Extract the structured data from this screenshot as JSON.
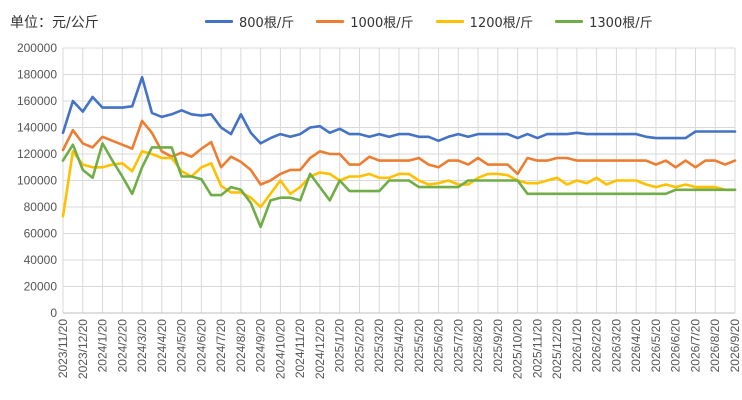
{
  "chart_data": {
    "type": "line",
    "unit_label": "单位：元/公斤",
    "ylim": [
      0,
      200000
    ],
    "y_ticks": [
      "0",
      "20000",
      "40000",
      "60000",
      "80000",
      "100000",
      "120000",
      "140000",
      "160000",
      "180000",
      "200000"
    ],
    "x": [
      "2023/11/20",
      "2023/12/5",
      "2023/12/20",
      "2024/1/5",
      "2024/1/20",
      "2024/2/5",
      "2024/2/20",
      "2024/3/5",
      "2024/3/20",
      "2024/4/5",
      "2024/4/20",
      "2024/5/5",
      "2024/5/20",
      "2024/6/5",
      "2024/6/20",
      "2024/7/5",
      "2024/7/20",
      "2024/8/5",
      "2024/8/20",
      "2024/9/5",
      "2024/9/20",
      "2024/10/5",
      "2024/10/20",
      "2024/11/5",
      "2024/11/20",
      "2024/12/5",
      "2024/12/20",
      "2025/1/5",
      "2025/1/20",
      "2025/2/5",
      "2025/2/20",
      "2025/3/5",
      "2025/3/20",
      "2025/4/5",
      "2025/4/20",
      "2025/5/5",
      "2025/5/20",
      "2025/6/5",
      "2025/6/20",
      "2025/7/5",
      "2025/7/20",
      "2025/8/5",
      "2025/8/20",
      "2025/9/5",
      "2025/9/20",
      "2025/10/5",
      "2025/10/20",
      "2025/11/5",
      "2025/11/20",
      "2025/12/5",
      "2025/12/20",
      "2026/1/5",
      "2026/1/20",
      "2026/2/5",
      "2026/2/20",
      "2026/3/5",
      "2026/3/20",
      "2026/4/5",
      "2026/4/20",
      "2026/5/5",
      "2026/5/20",
      "2026/6/5",
      "2026/6/20",
      "2026/7/5",
      "2026/7/20",
      "2026/8/5",
      "2026/8/20",
      "2026/9/5",
      "2026/9/20"
    ],
    "x_tick_labels": [
      "2023/11/20",
      "2023/12/20",
      "2024/1/20",
      "2024/2/20",
      "2024/3/20",
      "2024/4/20",
      "2024/5/20",
      "2024/6/20",
      "2024/7/20",
      "2024/8/20",
      "2024/9/20",
      "2024/10/20",
      "2024/11/20",
      "2024/12/20",
      "2025/1/20",
      "2025/2/20",
      "2025/3/20",
      "2025/4/20",
      "2025/5/20",
      "2025/6/20",
      "2025/7/20",
      "2025/8/20",
      "2025/9/20",
      "2025/10/20",
      "2025/11/20",
      "2025/12/20",
      "2026/1/20",
      "2026/2/20",
      "2026/3/20",
      "2026/4/20",
      "2026/5/20",
      "2026/6/20",
      "2026/7/20",
      "2026/8/20",
      "2026/9/20"
    ],
    "grid": true,
    "legend_position": "top",
    "series": [
      {
        "name": "800根/斤",
        "color": "#4472C4",
        "values": [
          136000,
          160000,
          152000,
          163000,
          155000,
          155000,
          155000,
          156000,
          178000,
          151000,
          148000,
          150000,
          153000,
          150000,
          149000,
          150000,
          140000,
          135000,
          150000,
          136000,
          128000,
          132000,
          135000,
          133000,
          135000,
          140000,
          141000,
          136000,
          139000,
          135000,
          135000,
          133000,
          135000,
          133000,
          135000,
          135000,
          133000,
          133000,
          130000,
          133000,
          135000,
          133000,
          135000,
          135000,
          135000,
          135000,
          132000,
          135000,
          132000,
          135000,
          135000,
          135000,
          136000,
          135000,
          135000,
          135000,
          135000,
          135000,
          135000,
          133000,
          132000,
          132000,
          132000,
          132000,
          137000,
          137000,
          137000,
          137000,
          137000
        ]
      },
      {
        "name": "1000根/斤",
        "color": "#ED7D31",
        "values": [
          123000,
          138000,
          128000,
          125000,
          133000,
          130000,
          127000,
          124000,
          145000,
          136000,
          122000,
          118000,
          121000,
          118000,
          124000,
          129000,
          110000,
          118000,
          114000,
          108000,
          97000,
          100000,
          105000,
          108000,
          108000,
          117000,
          122000,
          120000,
          120000,
          112000,
          112000,
          118000,
          115000,
          115000,
          115000,
          115000,
          117000,
          112000,
          110000,
          115000,
          115000,
          112000,
          117000,
          112000,
          112000,
          112000,
          105000,
          117000,
          115000,
          115000,
          117000,
          117000,
          115000,
          115000,
          115000,
          115000,
          115000,
          115000,
          115000,
          115000,
          112000,
          115000,
          110000,
          115000,
          110000,
          115000,
          115000,
          112000,
          115000
        ]
      },
      {
        "name": "1200根/斤",
        "color": "#FFC000",
        "values": [
          73000,
          122000,
          112000,
          110000,
          110000,
          112000,
          113000,
          107000,
          122000,
          120000,
          117000,
          117000,
          107000,
          103000,
          110000,
          113000,
          96000,
          91000,
          91000,
          87000,
          80000,
          90000,
          100000,
          90000,
          95000,
          103000,
          106000,
          105000,
          100000,
          103000,
          103000,
          105000,
          102000,
          102000,
          105000,
          105000,
          100000,
          97000,
          98000,
          100000,
          97000,
          97000,
          102000,
          105000,
          105000,
          104000,
          100000,
          98000,
          98000,
          100000,
          102000,
          97000,
          100000,
          98000,
          102000,
          97000,
          100000,
          100000,
          100000,
          97000,
          95000,
          97000,
          95000,
          97000,
          95000,
          95000,
          95000,
          93000,
          93000
        ]
      },
      {
        "name": "1300根/斤",
        "color": "#70AD47",
        "values": [
          115000,
          127000,
          108000,
          102000,
          128000,
          115000,
          103000,
          90000,
          110000,
          125000,
          125000,
          125000,
          103000,
          103000,
          101000,
          89000,
          89000,
          95000,
          93000,
          83000,
          65000,
          85000,
          87000,
          87000,
          85000,
          105000,
          95000,
          85000,
          100000,
          92000,
          92000,
          92000,
          92000,
          100000,
          100000,
          100000,
          95000,
          95000,
          95000,
          95000,
          95000,
          100000,
          100000,
          100000,
          100000,
          100000,
          100000,
          90000,
          90000,
          90000,
          90000,
          90000,
          90000,
          90000,
          90000,
          90000,
          90000,
          90000,
          90000,
          90000,
          90000,
          90000,
          93000,
          93000,
          93000,
          93000,
          93000,
          93000,
          93000
        ]
      }
    ]
  }
}
